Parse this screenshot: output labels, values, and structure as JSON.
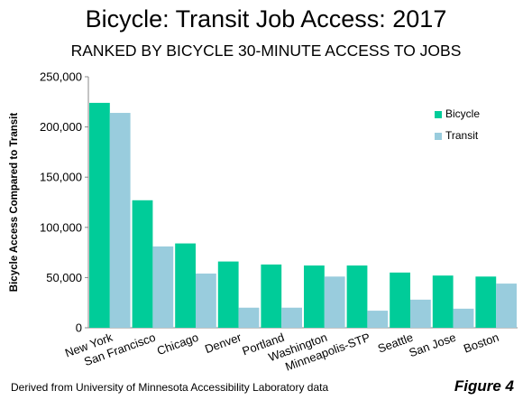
{
  "chart_data": {
    "type": "bar",
    "title": "Bicycle: Transit Job Access: 2017",
    "subtitle": "RANKED BY BICYCLE 30-MINUTE ACCESS TO JOBS",
    "ylabel": "Bicycle Access Compared to Transit",
    "xlabel": "",
    "ylim": [
      0,
      250000
    ],
    "yticks": [
      "0",
      "50,000",
      "100,000",
      "150,000",
      "200,000",
      "250,000"
    ],
    "categories": [
      "New York",
      "San Francisco",
      "Chicago",
      "Denver",
      "Portland",
      "Washington",
      "Minneapolis-STP",
      "Seattle",
      "San Jose",
      "Boston"
    ],
    "series": [
      {
        "name": "Bicycle",
        "color": "#00CC99",
        "values": [
          224000,
          127000,
          84000,
          66000,
          63000,
          62000,
          62000,
          55000,
          52000,
          51000
        ]
      },
      {
        "name": "Transit",
        "color": "#99CCDD",
        "values": [
          214000,
          81000,
          54000,
          20000,
          20000,
          51000,
          17000,
          28000,
          19000,
          44000
        ]
      }
    ],
    "grid": false,
    "legend_position": "top-right"
  },
  "footer": {
    "source": "Derived from University of Minnesota Accessibility Laboratory data",
    "figure_label": "Figure 4"
  }
}
